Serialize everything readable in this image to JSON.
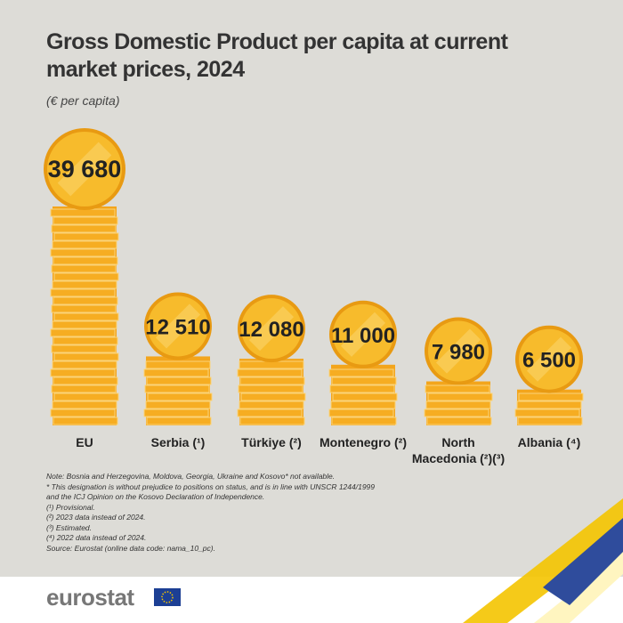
{
  "chart_data": {
    "type": "bar",
    "title": "Gross Domestic Product per capita at current market prices, 2024",
    "subtitle": "(€ per capita)",
    "categories": [
      "EU",
      "Serbia (¹)",
      "Türkiye (²)",
      "Montenegro (²)",
      "North Macedonia (²)(³)",
      "Albania (⁴)"
    ],
    "values": [
      39680,
      12510,
      12080,
      11000,
      7980,
      6500
    ],
    "value_labels": [
      "39 680",
      "12 510",
      "12 080",
      "11 000",
      "7 980",
      "6 500"
    ],
    "color": "#f3a51c",
    "notes": [
      "Note: Bosnia and Herzegovina, Moldova, Georgia, Ukraine and Kosovo* not available.",
      "* This designation is without prejudice to positions on status, and is in line with UNSCR 1244/1999",
      "and the ICJ Opinion on the Kosovo Declaration of Independence.",
      "(¹) Provisional.",
      "(²) 2023 data instead of 2024.",
      "(³) Estimated.",
      "(⁴) 2022 data instead of 2024.",
      "Source: Eurostat (online data code: nama_10_pc)."
    ],
    "footer": "eurostat"
  }
}
